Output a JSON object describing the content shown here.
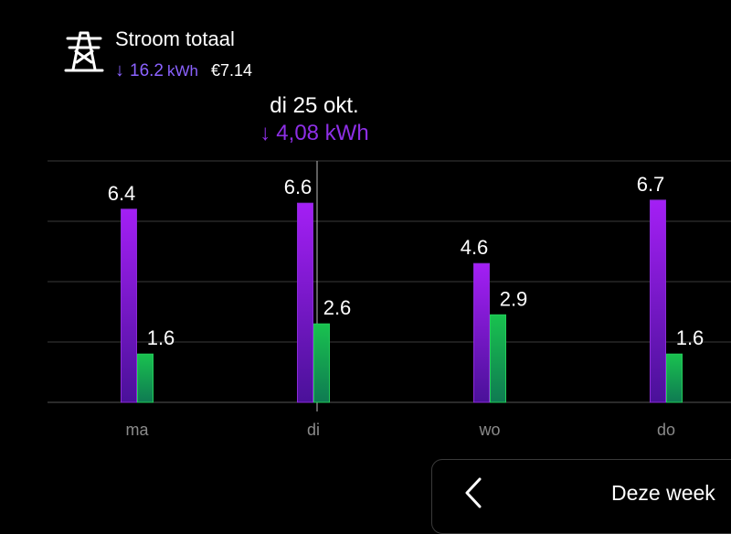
{
  "header": {
    "icon": "power-pylon-icon",
    "title": "Stroom totaal",
    "energy_value": "16.2",
    "energy_unit": "kWh",
    "cost": "€7.14",
    "arrow": "↓"
  },
  "tooltip": {
    "day": "di 25 okt.",
    "arrow": "↓",
    "value": "4,08 kWh"
  },
  "footer": {
    "back_icon": "chevron-left-icon",
    "period_label": "Deze week"
  },
  "colors": {
    "purple": "#9b1ff0",
    "green": "#17b24a",
    "accent": "#8b62ff",
    "gridline": "#3a3a3a"
  },
  "chart_data": {
    "type": "bar",
    "categories": [
      "ma",
      "di",
      "wo",
      "do"
    ],
    "series": [
      {
        "values": [
          6.4,
          6.6,
          4.6,
          6.7
        ]
      },
      {
        "values": [
          1.6,
          2.6,
          2.9,
          1.6
        ]
      }
    ],
    "value_labels": [
      [
        "6.4",
        "6.6",
        "4.6",
        "6.7"
      ],
      [
        "1.6",
        "2.6",
        "2.9",
        "1.6"
      ]
    ],
    "ylim": [
      0,
      8
    ],
    "grid": true,
    "selected_category": "di"
  }
}
